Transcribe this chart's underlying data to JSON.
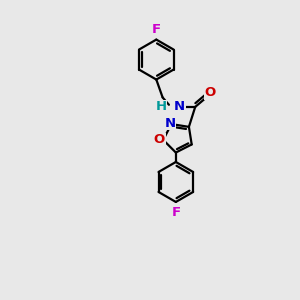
{
  "background_color": "#e8e8e8",
  "atom_colors": {
    "N": "#0000cc",
    "O": "#cc0000",
    "F": "#cc00cc",
    "H": "#009999"
  },
  "bond_color": "#000000",
  "bond_width": 1.6,
  "font_size": 9.5
}
